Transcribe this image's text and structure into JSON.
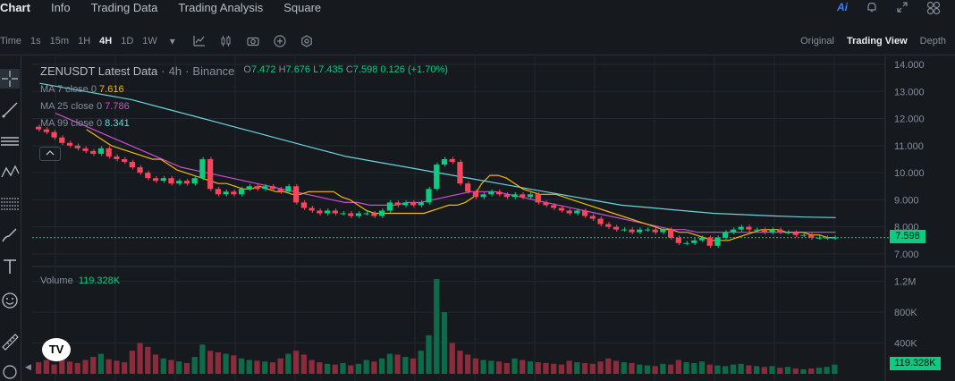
{
  "nav": {
    "tabs": [
      {
        "label": "Chart",
        "active": true
      },
      {
        "label": "Info",
        "active": false
      },
      {
        "label": "Trading Data",
        "active": false
      },
      {
        "label": "Trading Analysis",
        "active": false
      },
      {
        "label": "Square",
        "active": false
      }
    ],
    "ai_label": "Ai"
  },
  "toolbar": {
    "time_label": "Time",
    "intervals": [
      {
        "label": "1s",
        "active": false
      },
      {
        "label": "15m",
        "active": false
      },
      {
        "label": "1H",
        "active": false
      },
      {
        "label": "4H",
        "active": true
      },
      {
        "label": "1D",
        "active": false
      },
      {
        "label": "1W",
        "active": false
      }
    ],
    "views": [
      {
        "label": "Original",
        "active": false
      },
      {
        "label": "Trading View",
        "active": true
      },
      {
        "label": "Depth",
        "active": false
      }
    ]
  },
  "legend": {
    "symbol": "ZENUSDT Latest Data",
    "interval": "4h",
    "exchange": "Binance",
    "open_label": "O",
    "open": "7.472",
    "high_label": "H",
    "high": "7.676",
    "low_label": "L",
    "low": "7.435",
    "close_label": "C",
    "close": "7.598",
    "change": "0.126 (+1.70%)",
    "ma": [
      {
        "label": "MA 7 close 0",
        "value": "7.616",
        "color": "#f0b90b"
      },
      {
        "label": "MA 25 close 0",
        "value": "7.786",
        "color": "#d04bd7"
      },
      {
        "label": "MA 99 close 0",
        "value": "8.341",
        "color": "#6ad4de"
      }
    ],
    "collapse_icon": "chevron-up-icon"
  },
  "volume": {
    "label": "Volume",
    "value": "119.328K",
    "axis_ticks": [
      "1.2M",
      "800K",
      "400K"
    ]
  },
  "price_axis": {
    "ticks": [
      "14.000",
      "13.000",
      "12.000",
      "11.000",
      "10.000",
      "9.000",
      "8.000",
      "7.000"
    ],
    "last_price": "7.598"
  },
  "logo": "TV",
  "colors": {
    "up": "#0ecb81",
    "down": "#f6465d",
    "ma7": "#f0b90b",
    "ma25": "#d04bd7",
    "ma99": "#6ad4de",
    "background": "#161a1e"
  },
  "chart_data": {
    "type": "candlestick",
    "symbol": "ZENUSDT",
    "interval": "4h",
    "ylim": [
      6.6,
      14.1
    ],
    "closes": [
      11.6,
      11.5,
      11.3,
      11.1,
      11.0,
      10.9,
      10.8,
      10.7,
      10.9,
      10.6,
      10.5,
      10.4,
      10.2,
      10.0,
      9.8,
      9.7,
      9.8,
      9.6,
      9.7,
      9.6,
      9.8,
      10.5,
      9.4,
      9.2,
      9.3,
      9.2,
      9.4,
      9.5,
      9.4,
      9.5,
      9.4,
      9.3,
      9.5,
      8.9,
      8.7,
      8.6,
      8.5,
      8.6,
      8.5,
      8.5,
      8.4,
      8.5,
      8.5,
      8.4,
      8.6,
      8.9,
      8.8,
      8.9,
      8.8,
      8.9,
      9.4,
      10.3,
      10.5,
      10.4,
      9.6,
      9.3,
      9.1,
      9.2,
      9.3,
      9.2,
      9.1,
      9.2,
      9.1,
      9.2,
      8.9,
      8.8,
      8.7,
      8.6,
      8.5,
      8.6,
      8.4,
      8.3,
      8.1,
      8.0,
      7.9,
      7.9,
      7.8,
      7.9,
      7.9,
      7.8,
      7.9,
      7.6,
      7.4,
      7.4,
      7.5,
      7.6,
      7.3,
      7.6,
      7.8,
      7.9,
      8.0,
      7.9,
      7.9,
      7.8,
      7.9,
      7.8,
      7.8,
      7.7,
      7.7,
      7.6,
      7.6,
      7.6,
      7.6
    ],
    "volumes": [
      150000,
      180000,
      120000,
      200000,
      160000,
      140000,
      180000,
      220000,
      260000,
      190000,
      170000,
      150000,
      300000,
      400000,
      350000,
      250000,
      200000,
      180000,
      160000,
      140000,
      220000,
      380000,
      300000,
      280000,
      260000,
      240000,
      200000,
      180000,
      170000,
      160000,
      150000,
      200000,
      260000,
      300000,
      250000,
      180000,
      150000,
      130000,
      120000,
      140000,
      110000,
      130000,
      180000,
      160000,
      200000,
      260000,
      250000,
      220000,
      200000,
      300000,
      500000,
      1230000,
      800000,
      400000,
      300000,
      250000,
      200000,
      180000,
      170000,
      160000,
      140000,
      200000,
      180000,
      160000,
      150000,
      140000,
      130000,
      120000,
      170000,
      150000,
      140000,
      130000,
      160000,
      200000,
      170000,
      150000,
      140000,
      120000,
      110000,
      100000,
      130000,
      120000,
      180000,
      150000,
      140000,
      160000,
      120000,
      110000,
      100000,
      120000,
      130000,
      110000,
      100000,
      90000,
      100000,
      80000,
      90000,
      70000,
      60000,
      70000,
      80000,
      90000,
      119328
    ],
    "ma7": [
      11.6,
      11.4,
      11.2,
      11.0,
      10.9,
      10.8,
      10.7,
      10.6,
      10.5,
      10.5,
      10.3,
      10.1,
      10.0,
      9.9,
      9.8,
      9.7,
      9.6,
      9.6,
      9.5,
      9.4,
      9.4,
      9.5,
      9.4,
      9.3,
      9.3,
      9.2,
      9.2,
      9.3,
      9.3,
      9.3,
      9.3,
      9.1,
      9.0,
      8.8,
      8.6,
      8.5,
      8.5,
      8.5,
      8.5,
      8.5,
      8.5,
      8.5,
      8.6,
      8.7,
      8.8,
      8.8,
      8.9,
      9.1,
      9.6,
      9.9,
      9.9,
      9.8,
      9.6,
      9.4,
      9.3,
      9.2,
      9.2,
      9.2,
      9.1,
      9.0,
      8.9,
      8.8,
      8.7,
      8.6,
      8.5,
      8.4,
      8.3,
      8.2,
      8.1,
      8.0,
      7.9,
      7.9,
      7.8,
      7.8,
      7.7,
      7.6,
      7.5,
      7.5,
      7.5,
      7.6,
      7.7,
      7.8,
      7.9,
      7.9,
      7.9,
      7.8,
      7.8,
      7.8,
      7.7,
      7.7,
      7.6,
      7.6
    ],
    "ma25": [
      12.2,
      12.0,
      11.8,
      11.6,
      11.4,
      11.2,
      11.0,
      10.8,
      10.6,
      10.4,
      10.2,
      10.1,
      10.0,
      9.9,
      9.8,
      9.7,
      9.6,
      9.5,
      9.4,
      9.3,
      9.2,
      9.1,
      9.0,
      8.9,
      8.9,
      8.8,
      8.8,
      8.8,
      8.9,
      8.9,
      9.0,
      9.1,
      9.2,
      9.3,
      9.3,
      9.3,
      9.2,
      9.1,
      9.0,
      8.9,
      8.8,
      8.7,
      8.6,
      8.5,
      8.4,
      8.3,
      8.2,
      8.1,
      8.0,
      7.9,
      7.9,
      7.8,
      7.8,
      7.8,
      7.8,
      7.8,
      7.8,
      7.8,
      7.8,
      7.8,
      7.8,
      7.8,
      7.8
    ],
    "ma99": [
      13.3,
      13.1,
      12.9,
      12.7,
      12.4,
      12.1,
      11.8,
      11.5,
      11.2,
      10.9,
      10.6,
      10.4,
      10.2,
      10.0,
      9.8,
      9.6,
      9.4,
      9.2,
      9.0,
      8.8,
      8.7,
      8.6,
      8.5,
      8.45,
      8.4,
      8.36,
      8.34
    ],
    "last_price": 7.598
  }
}
